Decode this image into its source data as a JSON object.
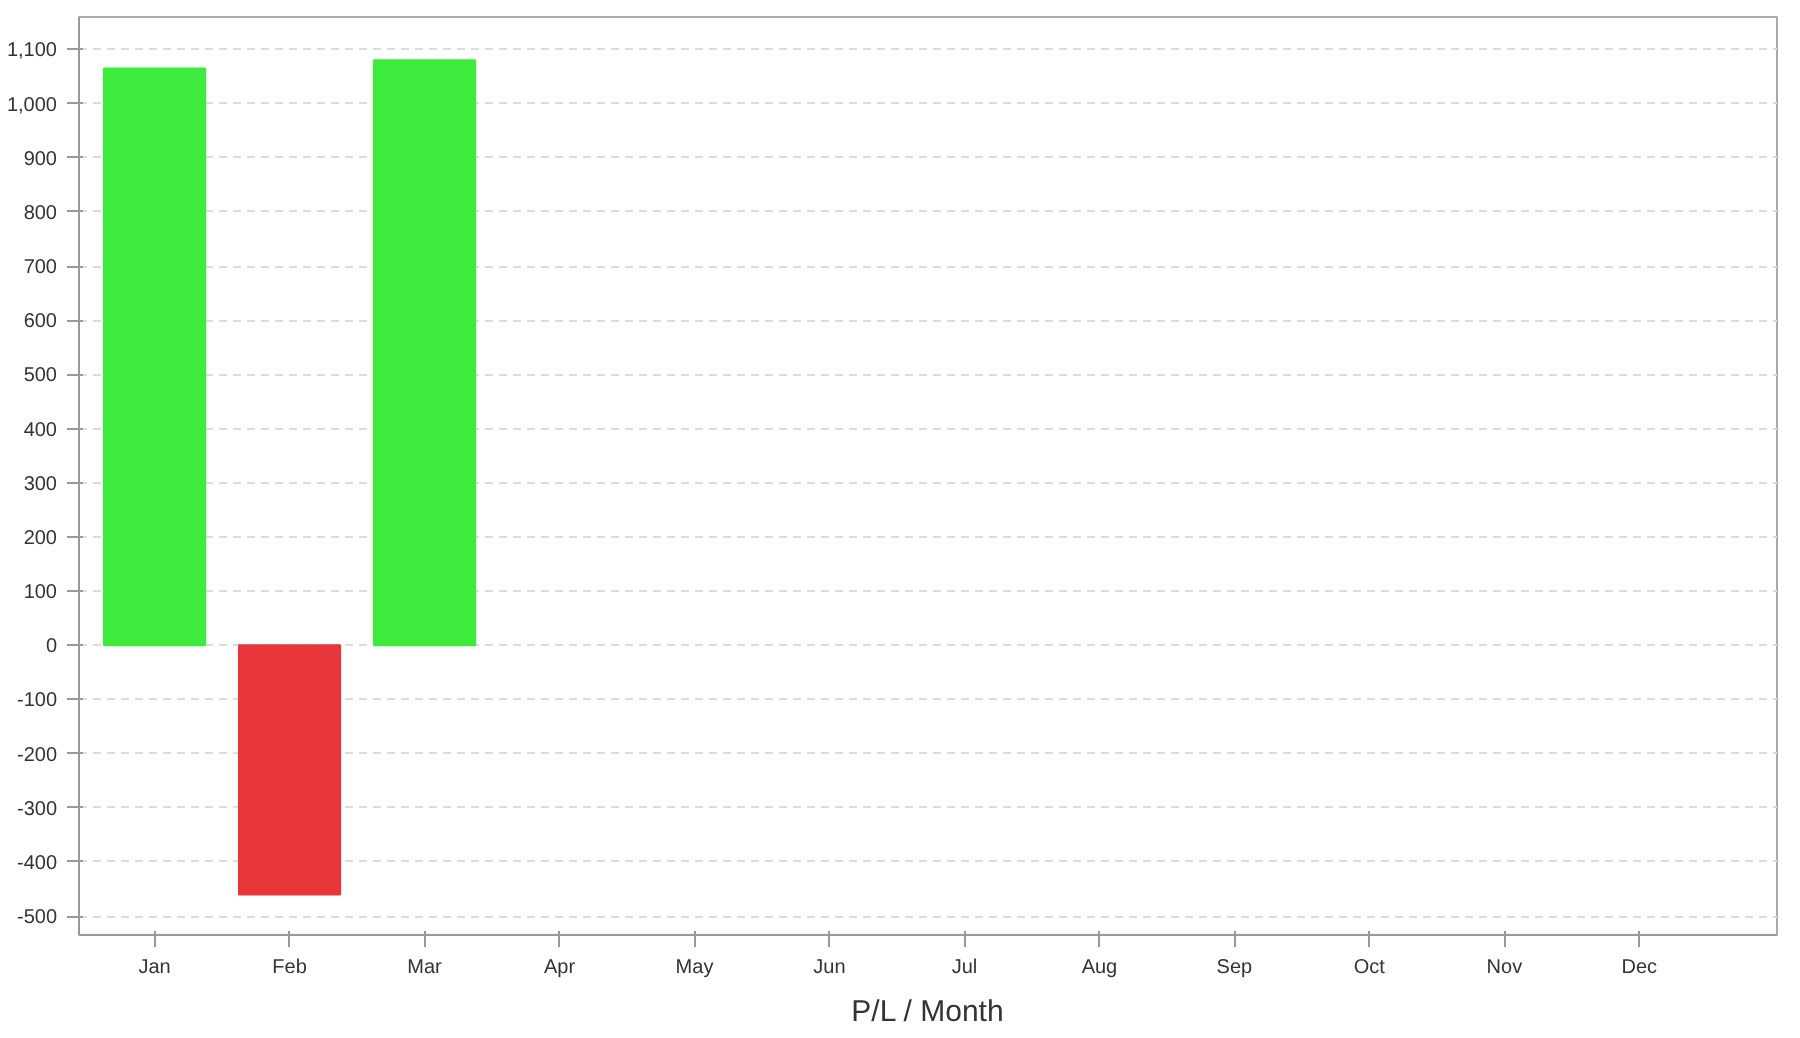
{
  "chart_data": {
    "type": "bar",
    "xlabel": "P/L / Month",
    "categories": [
      "Jan",
      "Feb",
      "Mar",
      "Apr",
      "May",
      "Jun",
      "Jul",
      "Aug",
      "Sep",
      "Oct",
      "Nov",
      "Dec"
    ],
    "values": [
      1065,
      -460,
      1080,
      null,
      null,
      null,
      null,
      null,
      null,
      null,
      null,
      null
    ],
    "colors": [
      "#3deb3d",
      "#e8363b",
      "#3deb3d",
      "#3deb3d",
      "#3deb3d",
      "#3deb3d",
      "#3deb3d",
      "#3deb3d",
      "#3deb3d",
      "#3deb3d",
      "#3deb3d",
      "#3deb3d"
    ],
    "ylim": [
      -535,
      1160
    ],
    "yticks": [
      -500,
      -400,
      -300,
      -200,
      -100,
      0,
      100,
      200,
      300,
      400,
      500,
      600,
      700,
      800,
      900,
      {
        "value": 1000,
        "label": "1,000"
      },
      {
        "value": 1100,
        "label": "1,100"
      }
    ],
    "grid": "y"
  }
}
